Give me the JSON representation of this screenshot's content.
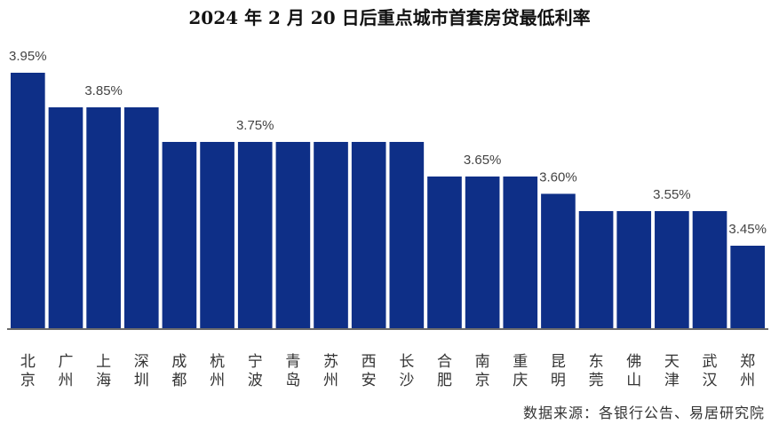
{
  "title": "2024 年 2 月 20 日后重点城市首套房贷最低利率",
  "source": "数据来源：各银行公告、易居研究院",
  "colors": {
    "bar": "#0e2f87",
    "axis": "#6b6b6b",
    "label": "#444444",
    "category": "#333333"
  },
  "chart_data": {
    "type": "bar",
    "title": "2024 年 2 月 20 日后重点城市首套房贷最低利率",
    "xlabel": "",
    "ylabel": "",
    "grid": false,
    "legend": "none",
    "categories": [
      "北京",
      "广州",
      "上海",
      "深圳",
      "成都",
      "杭州",
      "宁波",
      "青岛",
      "苏州",
      "西安",
      "长沙",
      "合肥",
      "南京",
      "重庆",
      "昆明",
      "东莞",
      "佛山",
      "天津",
      "武汉",
      "郑州"
    ],
    "values": [
      3.95,
      3.85,
      3.85,
      3.85,
      3.75,
      3.75,
      3.75,
      3.75,
      3.75,
      3.75,
      3.75,
      3.65,
      3.65,
      3.65,
      3.6,
      3.55,
      3.55,
      3.55,
      3.55,
      3.45
    ],
    "data_labels": [
      {
        "index": 0,
        "text": "3.95%"
      },
      {
        "index": 2,
        "text": "3.85%"
      },
      {
        "index": 6,
        "text": "3.75%"
      },
      {
        "index": 12,
        "text": "3.65%"
      },
      {
        "index": 14,
        "text": "3.60%"
      },
      {
        "index": 17,
        "text": "3.55%"
      },
      {
        "index": 19,
        "text": "3.45%"
      }
    ]
  }
}
